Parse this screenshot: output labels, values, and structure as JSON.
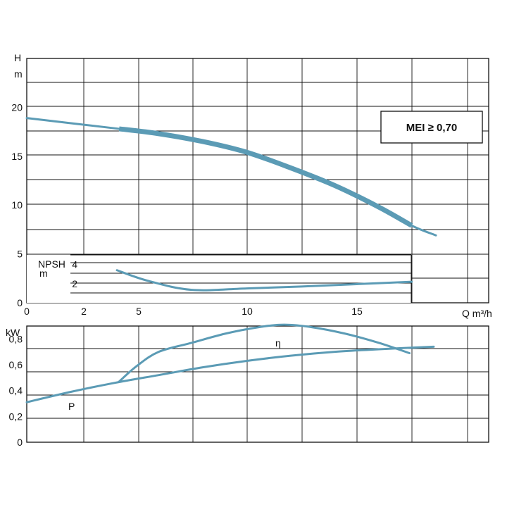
{
  "chart_data": [
    {
      "type": "line",
      "panel": "head",
      "ylabel_top": "H",
      "ylabel_unit": "m",
      "xlabel": "Q m³/h",
      "xlim": [
        0,
        21
      ],
      "ylim": [
        0,
        25
      ],
      "x_ticks": [
        "0",
        "2",
        "5",
        "10",
        "15"
      ],
      "y_ticks": [
        "0",
        "5",
        "10",
        "15",
        "20"
      ],
      "grid": true,
      "badge": "MEI ≥ 0,70",
      "series": [
        {
          "name": "",
          "color": "#5b9bb5",
          "x": [
            0,
            4.2,
            6,
            8,
            10,
            12,
            14,
            16,
            17.5,
            18.6
          ],
          "y": [
            18.9,
            17.8,
            17.3,
            16.5,
            15.4,
            13.8,
            12.0,
            9.8,
            7.9,
            6.9
          ]
        }
      ],
      "bold_segment_x": [
        4.2,
        18.0
      ],
      "npsh": {
        "label_top": "NPSH",
        "label_unit": "m",
        "ylim": [
          0,
          5
        ],
        "xlim": [
          0,
          17.5
        ],
        "y_ticks": [
          "2",
          "4"
        ],
        "series": {
          "x": [
            4.1,
            5.5,
            7.5,
            10,
            12.5,
            15,
            17.5
          ],
          "y": [
            3.4,
            2.3,
            1.35,
            1.5,
            1.7,
            1.95,
            2.2
          ]
        }
      }
    },
    {
      "type": "line",
      "panel": "power",
      "ylabel": "kW",
      "xlim": [
        0,
        21
      ],
      "ylim": [
        0,
        0.9
      ],
      "y_ticks": [
        "0",
        "0,2",
        "0,4",
        "0,6",
        "0,8"
      ],
      "grid": true,
      "series": [
        {
          "name": "P",
          "x": [
            0,
            2,
            4,
            6,
            8,
            10,
            12,
            14,
            16,
            18.5
          ],
          "y": [
            0.31,
            0.39,
            0.46,
            0.52,
            0.58,
            0.63,
            0.67,
            0.7,
            0.72,
            0.74
          ]
        },
        {
          "name": "η",
          "x": [
            4.2,
            5,
            6,
            7.5,
            9,
            10.5,
            11.7,
            13,
            14.5,
            16,
            17.4
          ],
          "y": [
            0.47,
            0.59,
            0.7,
            0.77,
            0.84,
            0.89,
            0.91,
            0.89,
            0.84,
            0.77,
            0.69
          ]
        }
      ]
    }
  ]
}
